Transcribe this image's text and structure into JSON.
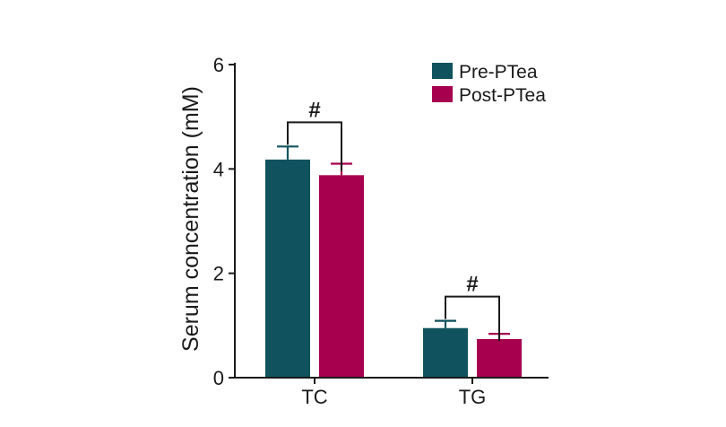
{
  "chart_data": {
    "type": "bar",
    "title": "",
    "xlabel": "",
    "ylabel": "Serum concentration (mM)",
    "ylim": [
      0,
      6
    ],
    "yticks": [
      0,
      2,
      4,
      6
    ],
    "categories": [
      "TC",
      "TG"
    ],
    "series": [
      {
        "name": "Pre-PTea",
        "color": "#10535e",
        "values": [
          4.18,
          0.95
        ],
        "errors": [
          0.25,
          0.14
        ]
      },
      {
        "name": "Post-PTea",
        "color": "#a6004f",
        "values": [
          3.88,
          0.74
        ],
        "errors": [
          0.22,
          0.1
        ]
      }
    ],
    "annotations": [
      {
        "text": "#",
        "category": "TC"
      },
      {
        "text": "#",
        "category": "TG"
      }
    ],
    "legend_position": "top-right",
    "grid": false
  }
}
